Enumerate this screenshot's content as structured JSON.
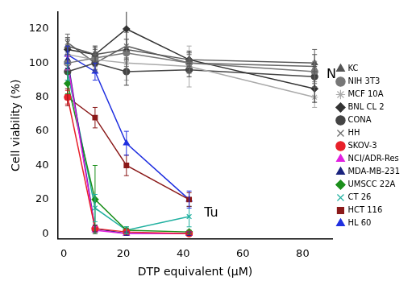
{
  "chart_data": {
    "type": "line",
    "x_label": "DTP equivalent (μM)",
    "y_label": "Cell viability (%)",
    "xlim": [
      -2,
      90
    ],
    "xticks": [
      0,
      20,
      40,
      60,
      80
    ],
    "ylim": [
      -3,
      130
    ],
    "yticks": [
      0,
      20,
      40,
      60,
      80,
      100,
      120
    ],
    "grid": false,
    "legend": "right",
    "annotations": [
      {
        "text": "N",
        "x": 88,
        "y": 93
      },
      {
        "text": "Tu",
        "x": 47,
        "y": 12
      }
    ],
    "series": [
      {
        "name": "KC",
        "color": "#555555",
        "marker": "triangle",
        "x": [
          1.3,
          10.5,
          21,
          42,
          84
        ],
        "values": [
          110,
          105,
          108,
          102,
          100
        ],
        "errors": [
          5,
          4,
          6,
          4,
          5
        ]
      },
      {
        "name": "NIH 3T3",
        "color": "#777777",
        "marker": "circle",
        "x": [
          1.3,
          10.5,
          21,
          42,
          84
        ],
        "values": [
          100,
          103,
          106,
          100,
          95
        ],
        "errors": [
          4,
          5,
          8,
          6,
          6
        ]
      },
      {
        "name": "MCF 10A",
        "color": "#aaaaaa",
        "marker": "star",
        "x": [
          1.3,
          10.5,
          21,
          42,
          84
        ],
        "values": [
          105,
          102,
          100,
          98,
          80
        ],
        "errors": [
          6,
          5,
          10,
          12,
          6
        ]
      },
      {
        "name": "BNL CL 2",
        "color": "#333333",
        "marker": "rectRot",
        "x": [
          1.3,
          10.5,
          21,
          42,
          84
        ],
        "values": [
          108,
          105,
          120,
          102,
          85
        ],
        "errors": [
          6,
          5,
          12,
          5,
          8
        ]
      },
      {
        "name": "CONA",
        "color": "#444444",
        "marker": "circle",
        "x": [
          1.3,
          10.5,
          21,
          42,
          84
        ],
        "values": [
          95,
          100,
          95,
          96,
          92
        ],
        "errors": [
          5,
          4,
          8,
          4,
          6
        ]
      },
      {
        "name": "HH",
        "color": "#666666",
        "marker": "crossRot",
        "x": [
          1.3,
          10.5,
          21,
          42,
          84
        ],
        "values": [
          112,
          100,
          110,
          100,
          98
        ],
        "errors": [
          5,
          5,
          8,
          5,
          10
        ]
      },
      {
        "name": "SKOV-3",
        "color": "#e8202a",
        "marker": "circle",
        "x": [
          1.3,
          10.5,
          21,
          42
        ],
        "values": [
          80,
          3,
          1,
          0
        ],
        "errors": [
          4,
          2,
          1,
          1
        ]
      },
      {
        "name": "NCI/ADR-Res",
        "color": "#e020e0",
        "marker": "triangle",
        "x": [
          1.3,
          10.5,
          21,
          42
        ],
        "values": [
          100,
          2,
          0,
          0
        ],
        "errors": [
          4,
          2,
          1,
          1
        ]
      },
      {
        "name": "MDA-MB-231",
        "color": "#1a237e",
        "marker": "triangle",
        "x": [
          1.3,
          10.5,
          21,
          42
        ],
        "values": [
          102,
          3,
          0,
          0
        ],
        "errors": [
          5,
          2,
          1,
          1
        ]
      },
      {
        "name": "UMSCC 22A",
        "color": "#1b8f1b",
        "marker": "rectRot",
        "x": [
          1.3,
          10.5,
          21,
          42
        ],
        "values": [
          88,
          20,
          2,
          1
        ],
        "errors": [
          6,
          20,
          2,
          1
        ]
      },
      {
        "name": "CT 26",
        "color": "#20b0a0",
        "marker": "crossRot",
        "x": [
          1.3,
          10.5,
          21,
          42
        ],
        "values": [
          95,
          15,
          2,
          10
        ],
        "errors": [
          5,
          8,
          2,
          6
        ]
      },
      {
        "name": "HCT 116",
        "color": "#8b1a1a",
        "marker": "rect",
        "x": [
          1.3,
          10.5,
          21,
          42
        ],
        "values": [
          80,
          68,
          40,
          20
        ],
        "errors": [
          5,
          6,
          6,
          4
        ]
      },
      {
        "name": "HL 60",
        "color": "#2030e0",
        "marker": "triangle",
        "x": [
          1.3,
          10.5,
          21,
          42
        ],
        "values": [
          105,
          95,
          53,
          20
        ],
        "errors": [
          5,
          5,
          7,
          5
        ]
      }
    ]
  }
}
